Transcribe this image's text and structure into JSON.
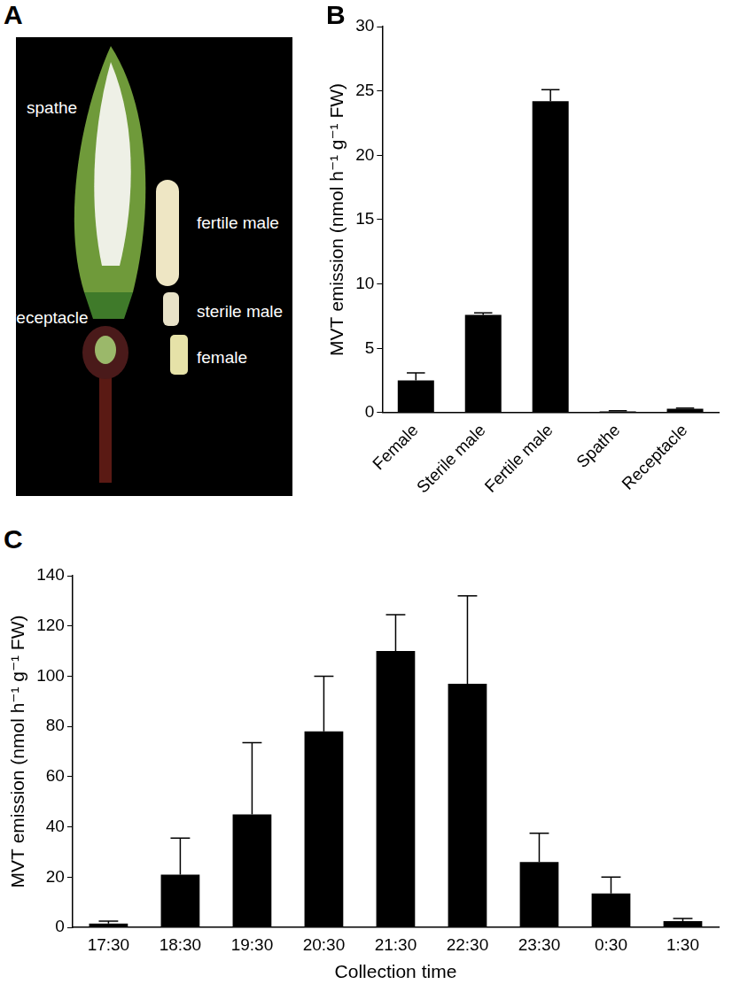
{
  "photo": {
    "panel": "A",
    "labels": [
      "spathe",
      "fertile male",
      "sterile male",
      "female",
      "receptacle"
    ]
  },
  "chart_data": [
    {
      "type": "bar",
      "panel": "B",
      "categories": [
        "Female",
        "Sterile male",
        "Fertile male",
        "Spathe",
        "Receptacle"
      ],
      "values": [
        2.5,
        7.6,
        24.2,
        0.1,
        0.3
      ],
      "errors": [
        0.6,
        0.15,
        0.9,
        0.05,
        0.05
      ],
      "color": "#000000",
      "y_label": "MVT emission (nmol h⁻¹ g⁻¹ FW)",
      "ylim": [
        0,
        30
      ],
      "yticks": [
        0,
        5,
        10,
        15,
        20,
        25,
        30
      ],
      "grid": false
    },
    {
      "type": "bar",
      "panel": "C",
      "categories": [
        "17:30",
        "18:30",
        "19:30",
        "20:30",
        "21:30",
        "22:30",
        "23:30",
        "0:30",
        "1:30"
      ],
      "values": [
        1.5,
        21,
        45,
        78,
        110,
        97,
        26,
        13.5,
        2.5
      ],
      "errors": [
        1,
        14.5,
        28.5,
        22,
        14.5,
        35,
        11.5,
        6.5,
        1
      ],
      "color": "#000000",
      "x_label": "Collection time",
      "y_label": "MVT emission (nmol h⁻¹ g⁻¹ FW)",
      "ylim": [
        0,
        140
      ],
      "yticks": [
        0,
        20,
        40,
        60,
        80,
        100,
        120,
        140
      ],
      "grid": false
    }
  ]
}
